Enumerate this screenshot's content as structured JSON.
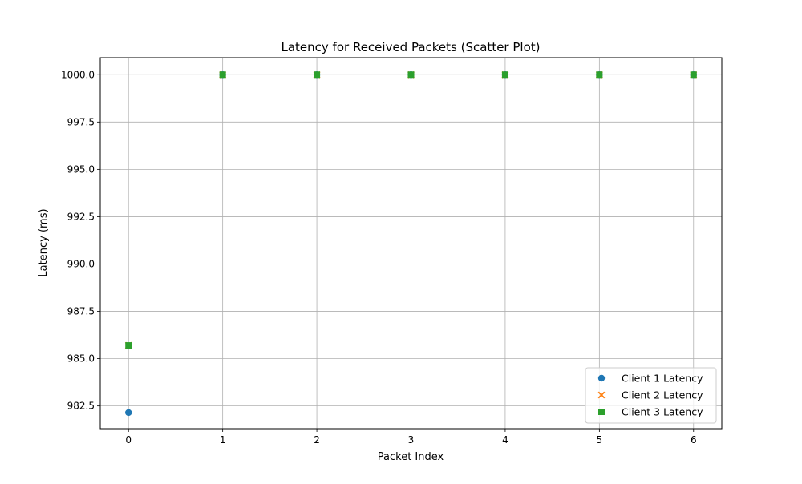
{
  "chart_data": {
    "type": "scatter",
    "title": "Latency for Received Packets (Scatter Plot)",
    "xlabel": "Packet Index",
    "ylabel": "Latency (ms)",
    "xlim": [
      -0.3,
      6.3
    ],
    "ylim": [
      981.3,
      1000.9
    ],
    "xticks": [
      0,
      1,
      2,
      3,
      4,
      5,
      6
    ],
    "xtick_labels": [
      "0",
      "1",
      "2",
      "3",
      "4",
      "5",
      "6"
    ],
    "yticks": [
      982.5,
      985.0,
      987.5,
      990.0,
      992.5,
      995.0,
      997.5,
      1000.0
    ],
    "ytick_labels": [
      "982.5",
      "985.0",
      "987.5",
      "990.0",
      "992.5",
      "995.0",
      "997.5",
      "1000.0"
    ],
    "grid": true,
    "legend_position": "lower-right",
    "series": [
      {
        "name": "Client 1 Latency",
        "marker": "circle",
        "color": "#1f77b4",
        "points": [
          {
            "x": 0,
            "y": 982.15
          },
          {
            "x": 1,
            "y": 1000.0
          },
          {
            "x": 2,
            "y": 1000.0
          },
          {
            "x": 3,
            "y": 1000.0
          },
          {
            "x": 4,
            "y": 1000.0
          },
          {
            "x": 5,
            "y": 1000.0
          },
          {
            "x": 6,
            "y": 1000.0
          }
        ]
      },
      {
        "name": "Client 2 Latency",
        "marker": "x",
        "color": "#ff7f0e",
        "points": [
          {
            "x": 0,
            "y": 985.7
          },
          {
            "x": 1,
            "y": 1000.0
          },
          {
            "x": 2,
            "y": 1000.0
          },
          {
            "x": 3,
            "y": 1000.0
          },
          {
            "x": 4,
            "y": 1000.0
          },
          {
            "x": 5,
            "y": 1000.0
          },
          {
            "x": 6,
            "y": 1000.0
          }
        ]
      },
      {
        "name": "Client 3 Latency",
        "marker": "square",
        "color": "#2ca02c",
        "points": [
          {
            "x": 0,
            "y": 985.7
          },
          {
            "x": 1,
            "y": 1000.0
          },
          {
            "x": 2,
            "y": 1000.0
          },
          {
            "x": 3,
            "y": 1000.0
          },
          {
            "x": 4,
            "y": 1000.0
          },
          {
            "x": 5,
            "y": 1000.0
          },
          {
            "x": 6,
            "y": 1000.0
          }
        ]
      }
    ]
  }
}
